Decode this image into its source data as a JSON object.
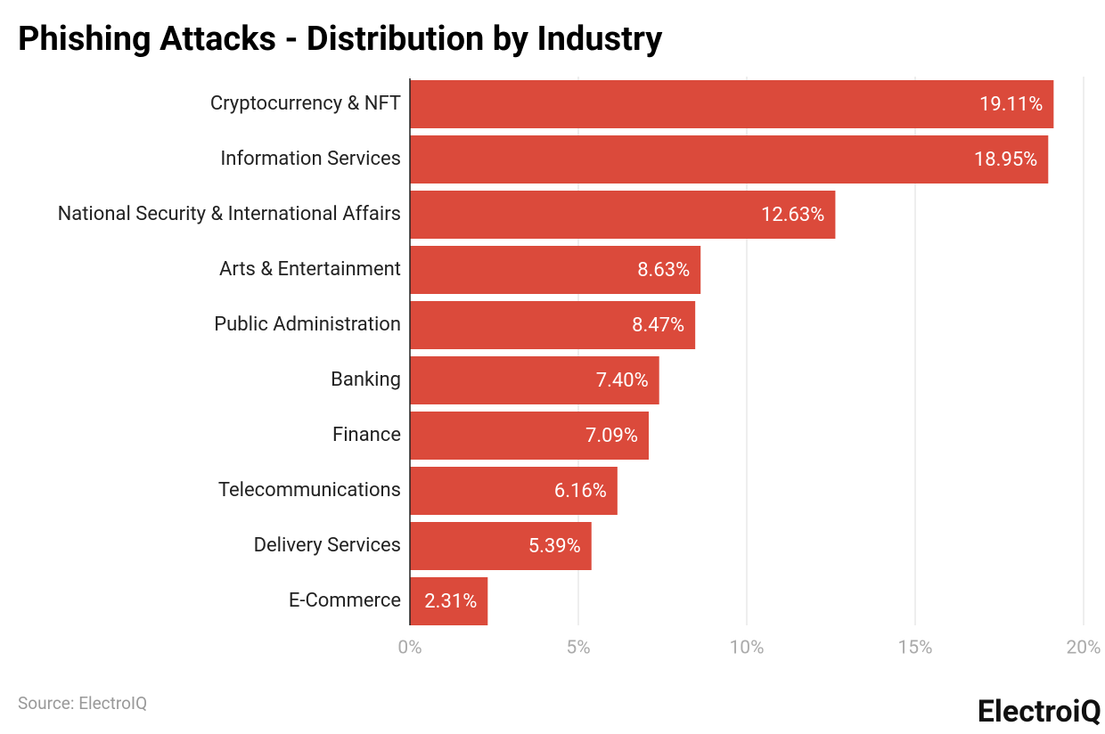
{
  "chart_data": {
    "type": "bar",
    "orientation": "horizontal",
    "title": "Phishing Attacks - Distribution by Industry",
    "categories": [
      "Cryptocurrency & NFT",
      "Information Services",
      "National Security & International Affairs",
      "Arts & Entertainment",
      "Public Administration",
      "Banking",
      "Finance",
      "Telecommunications",
      "Delivery Services",
      "E-Commerce"
    ],
    "values": [
      19.11,
      18.95,
      12.63,
      8.63,
      8.47,
      7.4,
      7.09,
      6.16,
      5.39,
      2.31
    ],
    "value_labels": [
      "19.11%",
      "18.95%",
      "12.63%",
      "8.63%",
      "8.47%",
      "7.40%",
      "7.09%",
      "6.16%",
      "5.39%",
      "2.31%"
    ],
    "color": "#db4a3b",
    "xlim": [
      0,
      20
    ],
    "xticks": [
      {
        "value": 0,
        "label": "0%"
      },
      {
        "value": 5,
        "label": "5%"
      },
      {
        "value": 10,
        "label": "10%"
      },
      {
        "value": 15,
        "label": "15%"
      },
      {
        "value": 20,
        "label": "20%"
      }
    ],
    "grid": true,
    "source": "Source: ElectroIQ",
    "logo": "ElectroiQ"
  }
}
